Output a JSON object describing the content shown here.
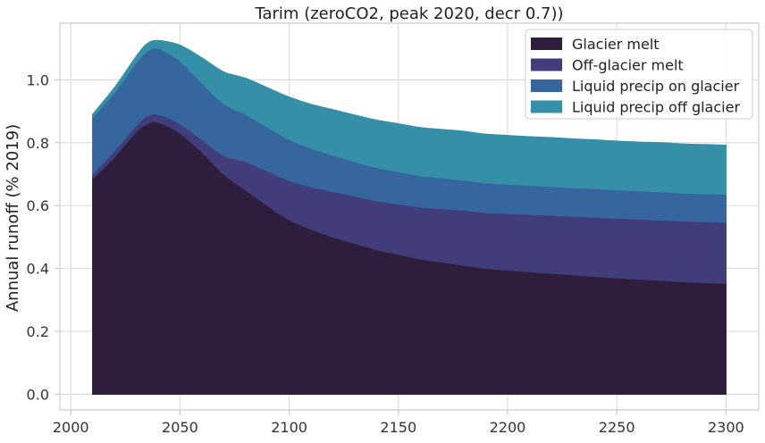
{
  "chart_data": {
    "type": "area",
    "stacked": true,
    "title": "Tarim (zeroCO2, peak 2020, decr 0.7))",
    "xlabel": "",
    "ylabel": "Annual runoff (% 2019)",
    "xlim": [
      1995,
      2315
    ],
    "ylim": [
      -0.05,
      1.18
    ],
    "xticks": [
      2000,
      2050,
      2100,
      2150,
      2200,
      2250,
      2300
    ],
    "yticks": [
      0.0,
      0.2,
      0.4,
      0.6,
      0.8,
      1.0
    ],
    "grid": true,
    "legend_position": "top-right",
    "x": [
      2010,
      2020,
      2030,
      2035,
      2040,
      2050,
      2060,
      2070,
      2080,
      2090,
      2100,
      2110,
      2120,
      2130,
      2140,
      2150,
      2160,
      2170,
      2180,
      2190,
      2200,
      2210,
      2220,
      2230,
      2240,
      2250,
      2260,
      2270,
      2280,
      2290,
      2300
    ],
    "series": [
      {
        "name": "Glacier melt",
        "color": "#2e1e3b",
        "values": [
          0.685,
          0.755,
          0.835,
          0.86,
          0.865,
          0.83,
          0.77,
          0.7,
          0.65,
          0.6,
          0.555,
          0.525,
          0.5,
          0.48,
          0.46,
          0.445,
          0.43,
          0.42,
          0.41,
          0.4,
          0.395,
          0.39,
          0.385,
          0.38,
          0.375,
          0.37,
          0.366,
          0.362,
          0.358,
          0.355,
          0.352
        ]
      },
      {
        "name": "Off-glacier melt",
        "color": "#413d7b",
        "values": [
          0.015,
          0.02,
          0.02,
          0.025,
          0.025,
          0.03,
          0.04,
          0.06,
          0.09,
          0.11,
          0.125,
          0.135,
          0.145,
          0.15,
          0.155,
          0.16,
          0.165,
          0.17,
          0.175,
          0.178,
          0.18,
          0.182,
          0.184,
          0.186,
          0.188,
          0.19,
          0.191,
          0.192,
          0.193,
          0.194,
          0.195
        ]
      },
      {
        "name": "Liquid precip on glacier",
        "color": "#37659e",
        "values": [
          0.18,
          0.185,
          0.2,
          0.205,
          0.21,
          0.2,
          0.18,
          0.165,
          0.15,
          0.14,
          0.13,
          0.122,
          0.115,
          0.11,
          0.106,
          0.103,
          0.1,
          0.098,
          0.096,
          0.094,
          0.093,
          0.092,
          0.092,
          0.091,
          0.091,
          0.09,
          0.09,
          0.09,
          0.089,
          0.089,
          0.089
        ]
      },
      {
        "name": "Liquid precip off glacier",
        "color": "#348fa7",
        "values": [
          0.01,
          0.015,
          0.02,
          0.025,
          0.025,
          0.05,
          0.08,
          0.1,
          0.115,
          0.125,
          0.135,
          0.14,
          0.145,
          0.148,
          0.151,
          0.152,
          0.153,
          0.154,
          0.155,
          0.155,
          0.155,
          0.155,
          0.155,
          0.155,
          0.155,
          0.155,
          0.155,
          0.156,
          0.156,
          0.156,
          0.156
        ]
      }
    ]
  }
}
